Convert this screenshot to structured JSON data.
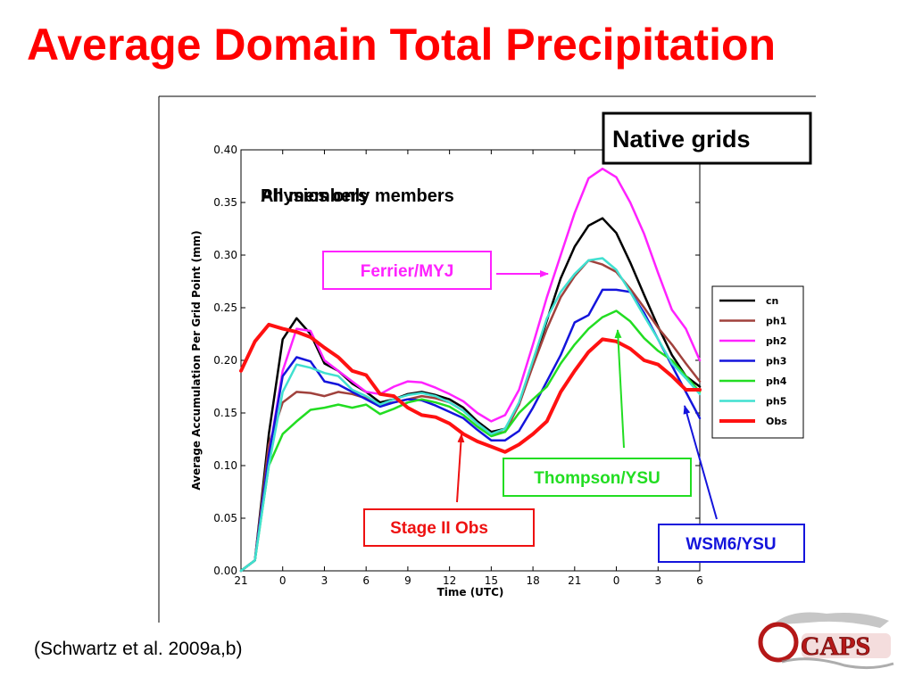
{
  "slide": {
    "title": "Average Domain Total Precipitation",
    "citation": "(Schwartz et al. 2009a,b)",
    "logo_text": "CAPS"
  },
  "colors": {
    "title": "#ff0000",
    "cn": "#000000",
    "ph1": "#a0413c",
    "ph2": "#ff22ff",
    "ph3": "#1414dc",
    "ph4": "#22dd22",
    "ph5": "#40e0d0",
    "Obs": "#ff1111"
  },
  "chart_data": {
    "type": "line",
    "xlabel": "Time (UTC)",
    "ylabel": "Average Accumulation Per Grid Point (mm)",
    "ylim": [
      0,
      0.4
    ],
    "yticks": [
      "0.00",
      "0.05",
      "0.10",
      "0.15",
      "0.20",
      "0.25",
      "0.30",
      "0.35",
      "0.40"
    ],
    "xlim": [
      0,
      33
    ],
    "xtick_positions": [
      0,
      3,
      6,
      9,
      12,
      15,
      18,
      21,
      24,
      27,
      30,
      33
    ],
    "xtick_labels": [
      "21",
      "0",
      "3",
      "6",
      "9",
      "12",
      "15",
      "18",
      "21",
      "0",
      "3",
      "6"
    ],
    "x": [
      0,
      1,
      2,
      3,
      4,
      5,
      6,
      7,
      8,
      9,
      10,
      11,
      12,
      13,
      14,
      15,
      16,
      17,
      18,
      19,
      20,
      21,
      22,
      23,
      24,
      25,
      26,
      27,
      28,
      29,
      30,
      31,
      32,
      33
    ],
    "series": [
      {
        "name": "cn",
        "values": [
          0.0,
          0.01,
          0.13,
          0.22,
          0.24,
          0.225,
          0.197,
          0.19,
          0.178,
          0.17,
          0.16,
          0.163,
          0.168,
          0.17,
          0.167,
          0.163,
          0.155,
          0.142,
          0.132,
          0.135,
          0.158,
          0.196,
          0.238,
          0.278,
          0.308,
          0.328,
          0.335,
          0.321,
          0.293,
          0.262,
          0.232,
          0.205,
          0.185,
          0.175
        ]
      },
      {
        "name": "ph1",
        "values": [
          0.0,
          0.01,
          0.12,
          0.16,
          0.17,
          0.169,
          0.166,
          0.17,
          0.168,
          0.164,
          0.158,
          0.16,
          0.163,
          0.166,
          0.164,
          0.16,
          0.152,
          0.14,
          0.13,
          0.132,
          0.158,
          0.195,
          0.23,
          0.26,
          0.28,
          0.295,
          0.291,
          0.284,
          0.268,
          0.25,
          0.231,
          0.215,
          0.197,
          0.18
        ]
      },
      {
        "name": "ph2",
        "values": [
          0.0,
          0.01,
          0.11,
          0.19,
          0.23,
          0.228,
          0.2,
          0.19,
          0.18,
          0.17,
          0.168,
          0.175,
          0.18,
          0.179,
          0.174,
          0.168,
          0.161,
          0.15,
          0.142,
          0.148,
          0.172,
          0.215,
          0.26,
          0.3,
          0.34,
          0.373,
          0.382,
          0.374,
          0.35,
          0.32,
          0.283,
          0.248,
          0.23,
          0.2
        ]
      },
      {
        "name": "ph3",
        "values": [
          0.0,
          0.01,
          0.11,
          0.185,
          0.203,
          0.199,
          0.18,
          0.177,
          0.17,
          0.163,
          0.156,
          0.16,
          0.163,
          0.162,
          0.157,
          0.151,
          0.145,
          0.134,
          0.124,
          0.124,
          0.133,
          0.155,
          0.18,
          0.205,
          0.236,
          0.243,
          0.267,
          0.267,
          0.265,
          0.245,
          0.22,
          0.195,
          0.17,
          0.145
        ]
      },
      {
        "name": "ph4",
        "values": [
          0.0,
          0.01,
          0.1,
          0.13,
          0.142,
          0.153,
          0.155,
          0.158,
          0.155,
          0.158,
          0.149,
          0.154,
          0.16,
          0.163,
          0.16,
          0.156,
          0.148,
          0.137,
          0.128,
          0.132,
          0.15,
          0.163,
          0.175,
          0.197,
          0.215,
          0.23,
          0.241,
          0.247,
          0.237,
          0.221,
          0.209,
          0.2,
          0.185,
          0.17
        ]
      },
      {
        "name": "ph5",
        "values": [
          0.0,
          0.01,
          0.1,
          0.17,
          0.196,
          0.193,
          0.188,
          0.185,
          0.172,
          0.166,
          0.158,
          0.163,
          0.167,
          0.169,
          0.166,
          0.16,
          0.152,
          0.14,
          0.13,
          0.135,
          0.16,
          0.2,
          0.24,
          0.265,
          0.282,
          0.295,
          0.297,
          0.286,
          0.265,
          0.242,
          0.22,
          0.197,
          0.183,
          0.168
        ]
      },
      {
        "name": "Obs",
        "values": [
          0.19,
          0.218,
          0.234,
          0.23,
          0.227,
          0.222,
          0.212,
          0.203,
          0.19,
          0.186,
          0.168,
          0.166,
          0.155,
          0.148,
          0.146,
          0.14,
          0.13,
          0.123,
          0.118,
          0.113,
          0.12,
          0.13,
          0.142,
          0.17,
          0.19,
          0.208,
          0.22,
          0.218,
          0.211,
          0.2,
          0.196,
          0.185,
          0.172,
          0.172
        ]
      }
    ],
    "legend_placement": "right",
    "grid": false
  },
  "annotations": {
    "native_grids": "Native grids",
    "overlay_text_a": "All members",
    "overlay_text_b": "Physics only members",
    "ferrier": "Ferrier/MYJ",
    "thompson": "Thompson/YSU",
    "stage_obs": "Stage II Obs",
    "wsm6": "WSM6/YSU"
  }
}
